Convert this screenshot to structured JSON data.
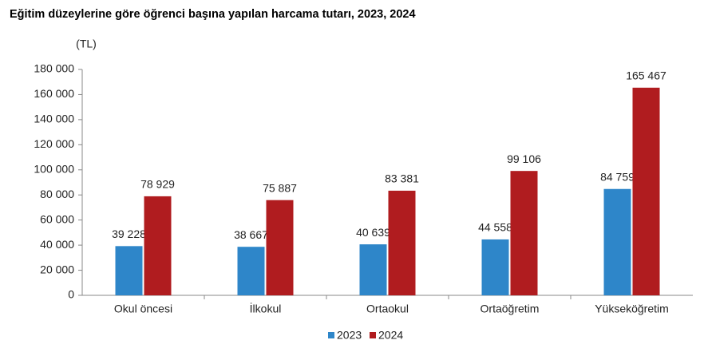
{
  "chart_data": {
    "type": "bar",
    "title": "Eğitim düzeylerine göre öğrenci başına yapılan harcama tutarı, 2023, 2024",
    "y_unit": "(TL)",
    "categories": [
      "Okul öncesi",
      "İlkokul",
      "Ortaokul",
      "Ortaöğretim",
      "Yükseköğretim"
    ],
    "series": [
      {
        "name": "2023",
        "color": "#2e86c9",
        "values": [
          39228,
          38667,
          40639,
          44558,
          84759
        ],
        "value_labels": [
          "39 228",
          "38 667",
          "40 639",
          "44 558",
          "84 759"
        ]
      },
      {
        "name": "2024",
        "color": "#b01c1f",
        "values": [
          78929,
          75887,
          83381,
          99106,
          165467
        ],
        "value_labels": [
          "78 929",
          "75 887",
          "83 381",
          "99 106",
          "165 467"
        ]
      }
    ],
    "ylim": [
      0,
      180000
    ],
    "yticks": [
      {
        "value": 0,
        "label": "0"
      },
      {
        "value": 20000,
        "label": "20 000"
      },
      {
        "value": 40000,
        "label": "40 000"
      },
      {
        "value": 60000,
        "label": "60 000"
      },
      {
        "value": 80000,
        "label": "80 000"
      },
      {
        "value": 100000,
        "label": "100 000"
      },
      {
        "value": 120000,
        "label": "120 000"
      },
      {
        "value": 140000,
        "label": "140 000"
      },
      {
        "value": 160000,
        "label": "160 000"
      },
      {
        "value": 180000,
        "label": "180 000"
      }
    ],
    "grid": false
  }
}
